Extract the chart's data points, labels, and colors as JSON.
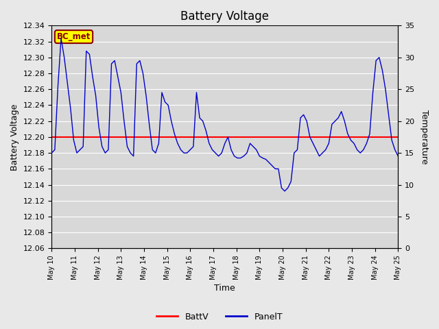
{
  "title": "Battery Voltage",
  "xlabel": "Time",
  "ylabel_left": "Battery Voltage",
  "ylabel_right": "Temperature",
  "ylim_left": [
    12.06,
    12.34
  ],
  "ylim_right": [
    0,
    35
  ],
  "yticks_left": [
    12.06,
    12.08,
    12.1,
    12.12,
    12.14,
    12.16,
    12.18,
    12.2,
    12.22,
    12.24,
    12.26,
    12.28,
    12.3,
    12.32,
    12.34
  ],
  "yticks_right": [
    0,
    5,
    10,
    15,
    20,
    25,
    30,
    35
  ],
  "batt_v": 12.2,
  "batt_color": "#ff0000",
  "panel_color": "#0000cc",
  "bg_color": "#d8d8d8",
  "fig_bg_color": "#e8e8e8",
  "legend_label_batt": "BattV",
  "legend_label_panel": "PanelT",
  "annotation_text": "BC_met",
  "annotation_bg": "#ffff00",
  "annotation_border": "#8b0000",
  "x_tick_labels": [
    "May 10",
    "May 11",
    "May 12",
    "May 13",
    "May 14",
    "May 15",
    "May 16",
    "May 17",
    "May 18",
    "May 19",
    "May 20",
    "May 21",
    "May 22",
    "May 23",
    "May 24",
    "May 25"
  ],
  "panel_t_data": [
    15.0,
    15.5,
    25.5,
    33.0,
    30.0,
    26.0,
    22.0,
    17.0,
    15.0,
    15.5,
    16.0,
    31.0,
    30.5,
    27.0,
    24.0,
    19.0,
    16.0,
    15.0,
    15.5,
    29.0,
    29.5,
    27.0,
    24.5,
    20.0,
    16.0,
    15.0,
    14.5,
    29.0,
    29.5,
    27.5,
    24.0,
    19.5,
    15.5,
    15.0,
    16.5,
    24.5,
    23.0,
    22.5,
    20.0,
    18.0,
    16.5,
    15.5,
    15.0,
    15.0,
    15.5,
    16.0,
    24.5,
    20.5,
    20.0,
    18.5,
    16.5,
    15.5,
    15.0,
    14.5,
    15.0,
    16.5,
    17.5,
    15.5,
    14.5,
    14.2,
    14.2,
    14.5,
    15.0,
    16.5,
    16.0,
    15.5,
    14.5,
    14.2,
    14.0,
    13.5,
    13.0,
    12.5,
    12.5,
    9.5,
    9.0,
    9.5,
    10.5,
    15.0,
    15.5,
    20.5,
    21.0,
    20.0,
    17.5,
    16.5,
    15.5,
    14.5,
    15.0,
    15.5,
    16.5,
    19.5,
    20.0,
    20.5,
    21.5,
    20.0,
    18.0,
    17.0,
    16.5,
    15.5,
    15.0,
    15.5,
    16.5,
    18.0,
    24.5,
    29.5,
    30.0,
    28.0,
    25.0,
    21.0,
    17.0,
    15.5,
    14.5
  ]
}
